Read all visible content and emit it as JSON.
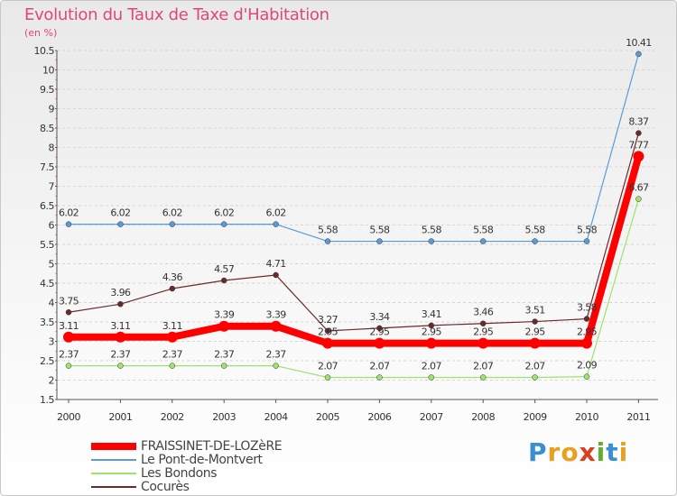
{
  "title": "Evolution du Taux de Taxe d'Habitation",
  "subtitle": "(en %)",
  "logo": {
    "letters": [
      "P",
      "r",
      "o",
      "x",
      "i",
      "t",
      "i"
    ],
    "colors": [
      "#3a8fd0",
      "#e8a020",
      "#e8a020",
      "#d84020",
      "#60b030",
      "#3a8fd0",
      "#e8a020"
    ]
  },
  "chart_data": {
    "type": "line",
    "x": [
      "2000",
      "2001",
      "2002",
      "2003",
      "2004",
      "2005",
      "2006",
      "2007",
      "2008",
      "2009",
      "2010",
      "2011"
    ],
    "ylim": [
      1.5,
      10.5
    ],
    "yticks": [
      "1.5",
      "2",
      "2.5",
      "3",
      "3.5",
      "4",
      "4.5",
      "5",
      "5.5",
      "6",
      "6.5",
      "7",
      "7.5",
      "8",
      "8.5",
      "9",
      "9.5",
      "10",
      "10.5"
    ],
    "grid": "horizontal",
    "legend_position": "bottom-left",
    "series": [
      {
        "name": "FRAISSINET-DE-LOZèRE",
        "color": "#ff0000",
        "width": 8,
        "values": [
          3.11,
          3.11,
          3.11,
          3.39,
          3.39,
          2.95,
          2.95,
          2.95,
          2.95,
          2.95,
          2.95,
          7.77
        ],
        "labels": [
          "3.11",
          "3.11",
          "3.11",
          "3.39",
          "3.39",
          "2.95",
          "2.95",
          "2.95",
          "2.95",
          "2.95",
          "2.95",
          "7.77"
        ]
      },
      {
        "name": "Le Pont-de-Montvert",
        "color": "#5b9bd5",
        "width": 1.2,
        "values": [
          6.02,
          6.02,
          6.02,
          6.02,
          6.02,
          5.58,
          5.58,
          5.58,
          5.58,
          5.58,
          5.58,
          10.41
        ],
        "labels": [
          "6.02",
          "6.02",
          "6.02",
          "6.02",
          "6.02",
          "5.58",
          "5.58",
          "5.58",
          "5.58",
          "5.58",
          "5.58",
          "10.41"
        ]
      },
      {
        "name": "Les Bondons",
        "color": "#9ee36c",
        "width": 1.2,
        "values": [
          2.37,
          2.37,
          2.37,
          2.37,
          2.37,
          2.07,
          2.07,
          2.07,
          2.07,
          2.07,
          2.09,
          6.67
        ],
        "labels": [
          "2.37",
          "2.37",
          "2.37",
          "2.37",
          "2.37",
          "2.07",
          "2.07",
          "2.07",
          "2.07",
          "2.07",
          "2.09",
          "6.67"
        ]
      },
      {
        "name": "Cocurès",
        "color": "#6b2a2a",
        "width": 1.2,
        "values": [
          3.75,
          3.96,
          4.36,
          4.57,
          4.71,
          3.27,
          3.34,
          3.41,
          3.46,
          3.51,
          3.58,
          8.37
        ],
        "labels": [
          "3.75",
          "3.96",
          "4.36",
          "4.57",
          "4.71",
          "3.27",
          "3.34",
          "3.41",
          "3.46",
          "3.51",
          "3.58",
          "8.37"
        ]
      }
    ]
  }
}
